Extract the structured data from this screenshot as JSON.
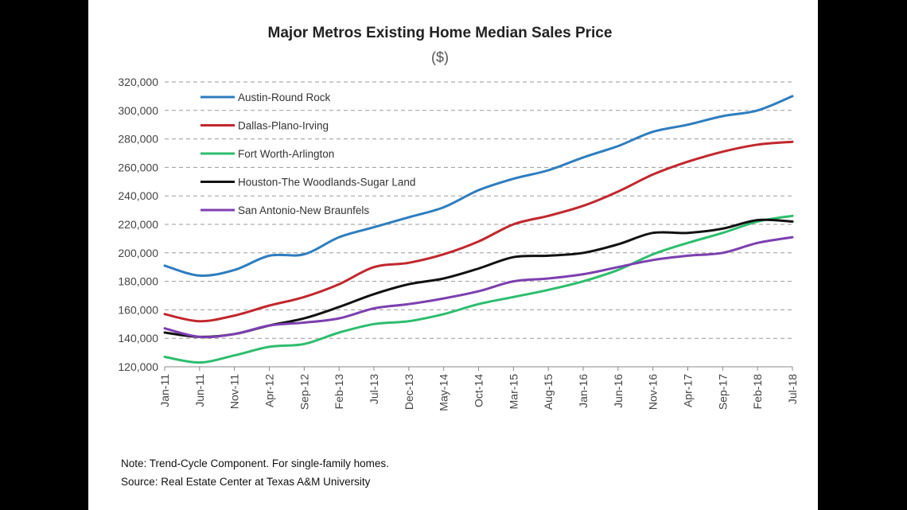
{
  "chart_data": {
    "type": "line",
    "title": "Major Metros Existing Home Median Sales Price",
    "subtitle": "($)",
    "xlabel": "",
    "ylabel": "",
    "ylim": [
      120000,
      320000
    ],
    "yticks": [
      120000,
      140000,
      160000,
      180000,
      200000,
      220000,
      240000,
      260000,
      280000,
      300000,
      320000
    ],
    "ytick_labels": [
      "120,000",
      "140,000",
      "160,000",
      "180,000",
      "200,000",
      "220,000",
      "240,000",
      "260,000",
      "280,000",
      "300,000",
      "320,000"
    ],
    "xtick_labels": [
      "Jan-11",
      "Jun-11",
      "Nov-11",
      "Apr-12",
      "Sep-12",
      "Feb-13",
      "Jul-13",
      "Dec-13",
      "May-14",
      "Oct-14",
      "Mar-15",
      "Aug-15",
      "Jan-16",
      "Jun-16",
      "Nov-16",
      "Apr-17",
      "Sep-17",
      "Feb-18",
      "Jul-18"
    ],
    "grid": true,
    "legend_position": "top-left",
    "series": [
      {
        "name": "Austin-Round Rock",
        "color": "#2e7dbf",
        "values": [
          191000,
          184000,
          188000,
          198000,
          199000,
          211000,
          218000,
          225000,
          232000,
          244000,
          252000,
          258000,
          267000,
          275000,
          285000,
          290000,
          296000,
          300000,
          310000
        ]
      },
      {
        "name": "Dallas-Plano-Irving",
        "color": "#c1272d",
        "values": [
          157000,
          152000,
          156000,
          163000,
          169000,
          178000,
          190000,
          193000,
          199000,
          208000,
          220000,
          226000,
          233000,
          243000,
          255000,
          264000,
          271000,
          276000,
          278000
        ]
      },
      {
        "name": "Fort Worth-Arlington",
        "color": "#2dbd6e",
        "values": [
          127000,
          123000,
          128000,
          134000,
          136000,
          144000,
          150000,
          152000,
          157000,
          164000,
          169000,
          174000,
          180000,
          188000,
          199000,
          207000,
          214000,
          222000,
          226000
        ]
      },
      {
        "name": "Houston-The Woodlands-Sugar Land",
        "color": "#111111",
        "values": [
          144000,
          141000,
          143000,
          149000,
          154000,
          162000,
          171000,
          178000,
          182000,
          189000,
          197000,
          198000,
          200000,
          206000,
          214000,
          214000,
          217000,
          223000,
          222000
        ]
      },
      {
        "name": "San Antonio-New Braunfels",
        "color": "#7c3fb0",
        "values": [
          147000,
          141000,
          143000,
          149000,
          151000,
          154000,
          161000,
          164000,
          168000,
          173000,
          180000,
          182000,
          185000,
          190000,
          195000,
          198000,
          200000,
          207000,
          211000
        ]
      }
    ]
  },
  "notes": {
    "line1": "Note: Trend-Cycle Component. For single-family homes.",
    "line2": "Source: Real Estate Center at Texas A&M University"
  }
}
